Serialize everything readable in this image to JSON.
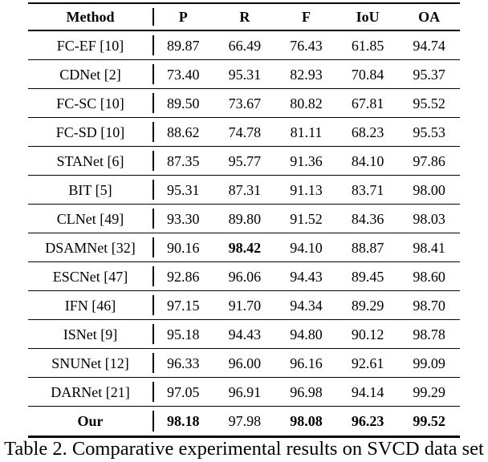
{
  "table": {
    "columns": [
      "Method",
      "P",
      "R",
      "F",
      "IoU",
      "OA"
    ],
    "rows": [
      {
        "method": "FC-EF [10]",
        "method_bold": false,
        "values": [
          "89.87",
          "66.49",
          "76.43",
          "61.85",
          "94.74"
        ],
        "bold_values": []
      },
      {
        "method": "CDNet [2]",
        "method_bold": false,
        "values": [
          "73.40",
          "95.31",
          "82.93",
          "70.84",
          "95.37"
        ],
        "bold_values": []
      },
      {
        "method": "FC-SC [10]",
        "method_bold": false,
        "values": [
          "89.50",
          "73.67",
          "80.82",
          "67.81",
          "95.52"
        ],
        "bold_values": []
      },
      {
        "method": "FC-SD [10]",
        "method_bold": false,
        "values": [
          "88.62",
          "74.78",
          "81.11",
          "68.23",
          "95.53"
        ],
        "bold_values": []
      },
      {
        "method": "STANet [6]",
        "method_bold": false,
        "values": [
          "87.35",
          "95.77",
          "91.36",
          "84.10",
          "97.86"
        ],
        "bold_values": []
      },
      {
        "method": "BIT [5]",
        "method_bold": false,
        "values": [
          "95.31",
          "87.31",
          "91.13",
          "83.71",
          "98.00"
        ],
        "bold_values": []
      },
      {
        "method": "CLNet [49]",
        "method_bold": false,
        "values": [
          "93.30",
          "89.80",
          "91.52",
          "84.36",
          "98.03"
        ],
        "bold_values": []
      },
      {
        "method": "DSAMNet [32]",
        "method_bold": false,
        "values": [
          "90.16",
          "98.42",
          "94.10",
          "88.87",
          "98.41"
        ],
        "bold_values": [
          1
        ]
      },
      {
        "method": "ESCNet [47]",
        "method_bold": false,
        "values": [
          "92.86",
          "96.06",
          "94.43",
          "89.45",
          "98.60"
        ],
        "bold_values": []
      },
      {
        "method": "IFN [46]",
        "method_bold": false,
        "values": [
          "97.15",
          "91.70",
          "94.34",
          "89.29",
          "98.70"
        ],
        "bold_values": []
      },
      {
        "method": "ISNet [9]",
        "method_bold": false,
        "values": [
          "95.18",
          "94.43",
          "94.80",
          "90.12",
          "98.78"
        ],
        "bold_values": []
      },
      {
        "method": "SNUNet [12]",
        "method_bold": false,
        "values": [
          "96.33",
          "96.00",
          "96.16",
          "92.61",
          "99.09"
        ],
        "bold_values": []
      },
      {
        "method": "DARNet [21]",
        "method_bold": false,
        "values": [
          "97.05",
          "96.91",
          "96.98",
          "94.14",
          "99.29"
        ],
        "bold_values": []
      },
      {
        "method": "Our",
        "method_bold": true,
        "values": [
          "98.18",
          "97.98",
          "98.08",
          "96.23",
          "99.52"
        ],
        "bold_values": [
          0,
          2,
          3,
          4
        ]
      }
    ]
  },
  "caption": "Table 2. Comparative experimental results on SVCD data set"
}
